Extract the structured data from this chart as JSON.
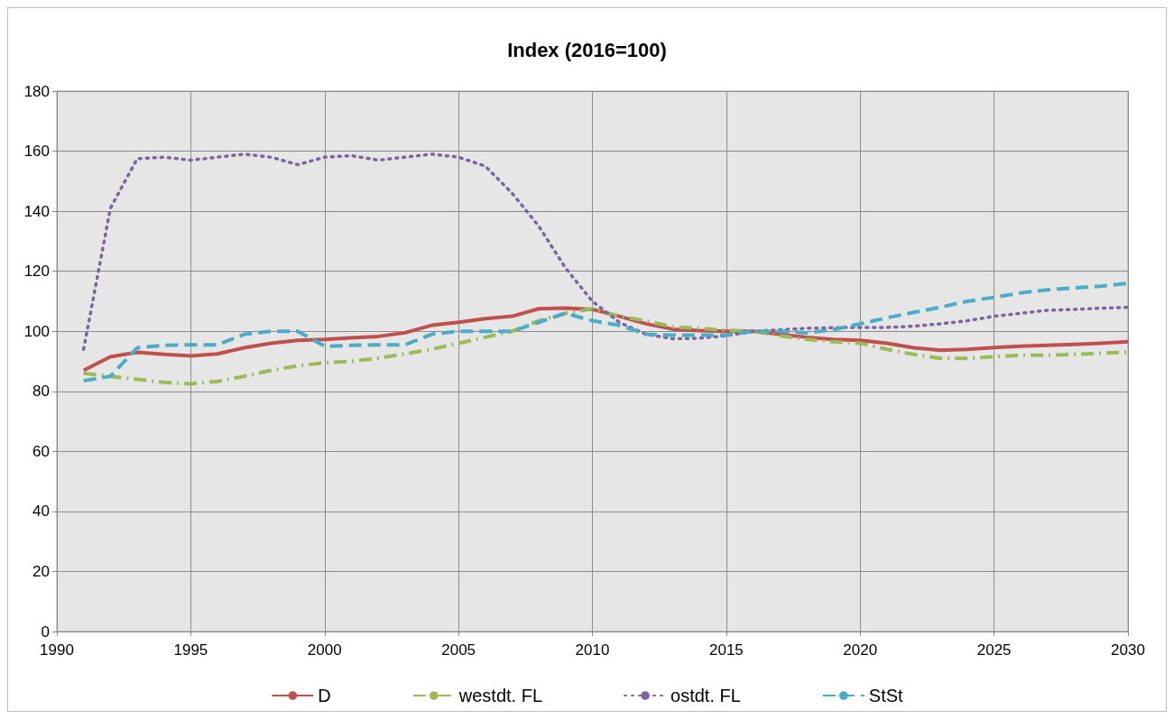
{
  "chart_data": {
    "type": "line",
    "title": "Index (2016=100)",
    "x": [
      1991,
      1992,
      1993,
      1994,
      1995,
      1996,
      1997,
      1998,
      1999,
      2000,
      2001,
      2002,
      2003,
      2004,
      2005,
      2006,
      2007,
      2008,
      2009,
      2010,
      2011,
      2012,
      2013,
      2014,
      2015,
      2016,
      2017,
      2018,
      2019,
      2020,
      2021,
      2022,
      2023,
      2024,
      2025,
      2026,
      2027,
      2028,
      2029,
      2030
    ],
    "series": [
      {
        "name": "D",
        "color": "#c0504d",
        "line_style": "solid",
        "values": [
          87,
          91.5,
          93,
          92.3,
          91.8,
          92.5,
          94.5,
          96,
          97,
          97.3,
          97.8,
          98.3,
          99.5,
          102,
          103,
          104.2,
          105,
          107.5,
          107.7,
          107.3,
          105,
          102.5,
          100.7,
          100.2,
          100,
          100,
          99,
          98,
          97.3,
          97,
          96,
          94.5,
          93.7,
          94,
          94.6,
          95,
          95.3,
          95.6,
          96,
          96.5
        ]
      },
      {
        "name": "westdt. FL",
        "color": "#9bbb59",
        "line_style": "dashdot",
        "values": [
          86,
          85,
          84,
          83,
          82.5,
          83.3,
          85,
          87,
          88.5,
          89.5,
          90,
          91,
          92.5,
          94,
          96,
          98,
          100,
          103.5,
          106,
          107.5,
          105,
          103.5,
          101.5,
          101,
          100.3,
          100,
          98.5,
          97.3,
          96.5,
          96,
          94,
          92.3,
          91,
          91,
          91.5,
          92,
          92,
          92.3,
          92.7,
          93
        ]
      },
      {
        "name": "ostdt. FL",
        "color": "#8064a2",
        "line_style": "dotted",
        "values": [
          94,
          141,
          157.5,
          158,
          157,
          158,
          159,
          158,
          155.5,
          158,
          158.5,
          157,
          158,
          159,
          158,
          155,
          146,
          135,
          121,
          110,
          103,
          99,
          97.5,
          97.7,
          98.5,
          100,
          100.5,
          101,
          101.2,
          101.3,
          101.3,
          101.7,
          102.5,
          103.5,
          105,
          106,
          107,
          107.3,
          107.7,
          108
        ]
      },
      {
        "name": "StSt",
        "color": "#4bacc6",
        "line_style": "dashed",
        "values": [
          83.5,
          85,
          94.5,
          95.3,
          95.5,
          95.5,
          99,
          100,
          100,
          95,
          95.3,
          95.5,
          95.5,
          99,
          100,
          100,
          100,
          103,
          106,
          103.5,
          102,
          99,
          98.7,
          98.7,
          98.7,
          100,
          100,
          99.5,
          100.5,
          102.5,
          104.5,
          106.3,
          108,
          110,
          111.3,
          112.8,
          113.8,
          114.5,
          115,
          116
        ]
      }
    ],
    "xlim": [
      1990,
      2030
    ],
    "xticks": [
      1990,
      1995,
      2000,
      2005,
      2010,
      2015,
      2020,
      2025,
      2030
    ],
    "ylim": [
      0,
      180
    ],
    "yticks": [
      0,
      20,
      40,
      60,
      80,
      100,
      120,
      140,
      160,
      180
    ],
    "grid": true,
    "legend": "bottom",
    "marker": "none"
  }
}
